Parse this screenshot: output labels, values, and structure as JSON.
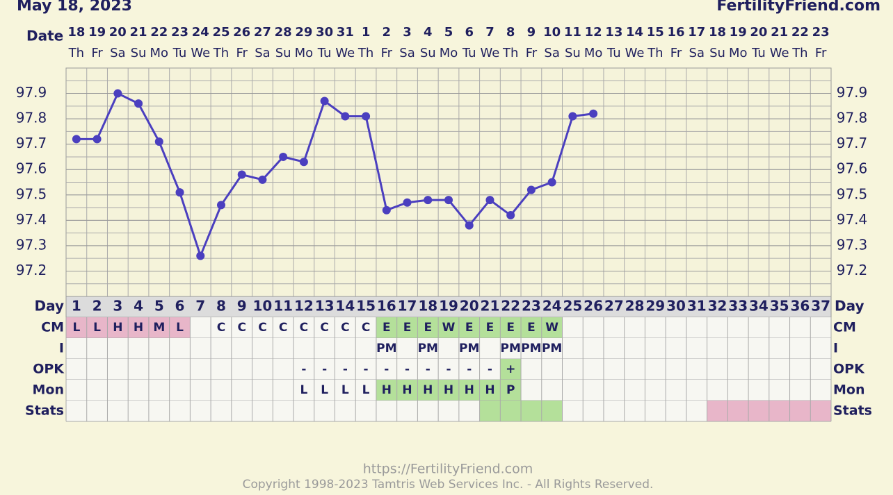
{
  "header": {
    "date": "May 18, 2023",
    "site": "FertilityFriend.com"
  },
  "chart_data": {
    "type": "line",
    "date_label": "Date",
    "dates": [
      "18",
      "19",
      "20",
      "21",
      "22",
      "23",
      "24",
      "25",
      "26",
      "27",
      "28",
      "29",
      "30",
      "31",
      "1",
      "2",
      "3",
      "4",
      "5",
      "6",
      "7",
      "8",
      "9",
      "10",
      "11",
      "12",
      "13",
      "14",
      "15",
      "16",
      "17",
      "18",
      "19",
      "20",
      "21",
      "22",
      "23"
    ],
    "weekdays": [
      "Th",
      "Fr",
      "Sa",
      "Su",
      "Mo",
      "Tu",
      "We",
      "Th",
      "Fr",
      "Sa",
      "Su",
      "Mo",
      "Tu",
      "We",
      "Th",
      "Fr",
      "Sa",
      "Su",
      "Mo",
      "Tu",
      "We",
      "Th",
      "Fr",
      "Sa",
      "Su",
      "Mo",
      "Tu",
      "We",
      "Th",
      "Fr",
      "Sa",
      "Su",
      "Mo",
      "Tu",
      "We",
      "Th",
      "Fr"
    ],
    "day_label": "Day",
    "categories": [
      1,
      2,
      3,
      4,
      5,
      6,
      7,
      8,
      9,
      10,
      11,
      12,
      13,
      14,
      15,
      16,
      17,
      18,
      19,
      20,
      21,
      22,
      23,
      24,
      25,
      26,
      27,
      28,
      29,
      30,
      31,
      32,
      33,
      34,
      35,
      36,
      37
    ],
    "values": [
      97.72,
      97.72,
      97.9,
      97.86,
      97.71,
      97.51,
      97.26,
      97.46,
      97.58,
      97.56,
      97.65,
      97.63,
      97.87,
      97.81,
      97.81,
      97.44,
      97.47,
      97.48,
      97.48,
      97.38,
      97.48,
      97.42,
      97.52,
      97.55,
      97.81,
      97.82,
      null,
      null,
      null,
      null,
      null,
      null,
      null,
      null,
      null,
      null,
      null
    ],
    "color": "#4b3fbf",
    "ylim": [
      97.1,
      98.0
    ],
    "yticks": [
      97.2,
      97.3,
      97.4,
      97.5,
      97.6,
      97.7,
      97.8,
      97.9
    ],
    "grid": true,
    "rows": [
      {
        "label": "CM",
        "cells": [
          "L",
          "L",
          "H",
          "H",
          "M",
          "L",
          null,
          "C",
          "C",
          "C",
          "C",
          "C",
          "C",
          "C",
          "C",
          "E",
          "E",
          "E",
          "W",
          "E",
          "E",
          "E",
          "E",
          "W",
          null,
          null,
          null,
          null,
          null,
          null,
          null,
          null,
          null,
          null,
          null,
          null,
          null
        ],
        "highlights": [
          {
            "from": 1,
            "to": 6,
            "color": "#e8b6c9"
          },
          {
            "from": 16,
            "to": 24,
            "color": "#b4e09a"
          }
        ]
      },
      {
        "label": "I",
        "cells": [
          null,
          null,
          null,
          null,
          null,
          null,
          null,
          null,
          null,
          null,
          null,
          null,
          null,
          null,
          null,
          "PM",
          null,
          "PM",
          null,
          "PM",
          null,
          "PM",
          "PM",
          "PM",
          null,
          null,
          null,
          null,
          null,
          null,
          null,
          null,
          null,
          null,
          null,
          null,
          null
        ],
        "highlights": []
      },
      {
        "label": "OPK",
        "cells": [
          null,
          null,
          null,
          null,
          null,
          null,
          null,
          null,
          null,
          null,
          null,
          "-",
          "-",
          "-",
          "-",
          "-",
          "-",
          "-",
          "-",
          "-",
          "-",
          "+",
          null,
          null,
          null,
          null,
          null,
          null,
          null,
          null,
          null,
          null,
          null,
          null,
          null,
          null,
          null
        ],
        "highlights": [
          {
            "from": 22,
            "to": 22,
            "color": "#b4e09a"
          }
        ]
      },
      {
        "label": "Mon",
        "cells": [
          null,
          null,
          null,
          null,
          null,
          null,
          null,
          null,
          null,
          null,
          null,
          "L",
          "L",
          "L",
          "L",
          "H",
          "H",
          "H",
          "H",
          "H",
          "H",
          "P",
          null,
          null,
          null,
          null,
          null,
          null,
          null,
          null,
          null,
          null,
          null,
          null,
          null,
          null,
          null
        ],
        "highlights": [
          {
            "from": 16,
            "to": 22,
            "color": "#b4e09a"
          }
        ]
      },
      {
        "label": "Stats",
        "cells": [
          null,
          null,
          null,
          null,
          null,
          null,
          null,
          null,
          null,
          null,
          null,
          null,
          null,
          null,
          null,
          null,
          null,
          null,
          null,
          null,
          null,
          null,
          null,
          null,
          null,
          null,
          null,
          null,
          null,
          null,
          null,
          null,
          null,
          null,
          null,
          null,
          null
        ],
        "highlights": [
          {
            "from": 21,
            "to": 24,
            "color": "#b4e09a"
          },
          {
            "from": 32,
            "to": 37,
            "color": "#e8b6c9"
          }
        ]
      }
    ]
  },
  "footer": {
    "url": "https://FertilityFriend.com",
    "copyright": "Copyright 1998-2023 Tamtris Web Services Inc. - All Rights Reserved."
  }
}
